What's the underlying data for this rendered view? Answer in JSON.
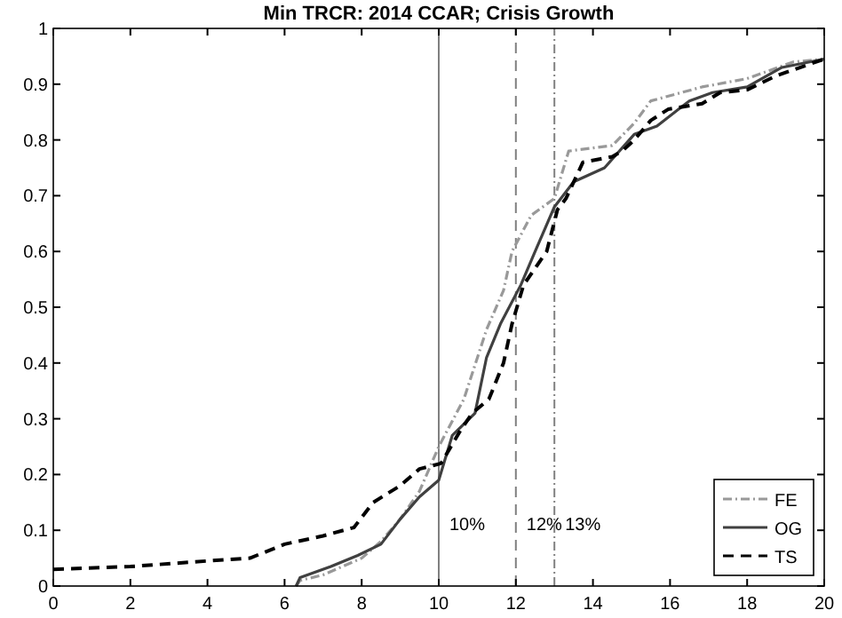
{
  "chart_data": {
    "type": "line",
    "title": "Min TRCR: 2014 CCAR; Crisis Growth",
    "xlim": [
      0,
      20
    ],
    "xticks": [
      0,
      2,
      4,
      6,
      8,
      10,
      12,
      14,
      16,
      18,
      20
    ],
    "ylim": [
      0,
      1
    ],
    "yticks": [
      0,
      0.1,
      0.2,
      0.3,
      0.4,
      0.5,
      0.6,
      0.7,
      0.8,
      0.9,
      1
    ],
    "grid": false,
    "legend": "bottom right",
    "series": [
      {
        "name": "FE",
        "color": "#999999",
        "line_style": "dotted",
        "x": [
          6.3,
          6.4,
          7,
          8,
          8.5,
          9,
          9.5,
          10,
          10.65,
          11.24,
          11.68,
          11.9,
          12.4,
          13,
          13.37,
          14.5,
          15.07,
          15.5,
          16.83,
          18,
          19.2,
          20
        ],
        "values": [
          0,
          0.01,
          0.02,
          0.05,
          0.08,
          0.12,
          0.17,
          0.25,
          0.335,
          0.46,
          0.53,
          0.6,
          0.665,
          0.695,
          0.78,
          0.79,
          0.83,
          0.87,
          0.895,
          0.91,
          0.94,
          0.945
        ]
      },
      {
        "name": "OG",
        "color": "#404040",
        "line_style": "solid",
        "x": [
          6.3,
          6.4,
          7.2,
          7.9,
          8.5,
          9,
          9.5,
          10,
          10.35,
          10.94,
          11.24,
          11.6,
          12.13,
          12.5,
          13,
          13.5,
          14.3,
          15.07,
          15.66,
          16.5,
          17.1,
          18,
          18.9,
          20
        ],
        "values": [
          0,
          0.015,
          0.035,
          0.055,
          0.075,
          0.12,
          0.16,
          0.19,
          0.27,
          0.31,
          0.41,
          0.47,
          0.54,
          0.6,
          0.68,
          0.725,
          0.75,
          0.81,
          0.825,
          0.87,
          0.885,
          0.895,
          0.93,
          0.945
        ]
      },
      {
        "name": "TS",
        "color": "#000000",
        "line_style": "dashed",
        "x": [
          0,
          2,
          4,
          5.1,
          6,
          7,
          7.8,
          8.3,
          9,
          9.5,
          10.06,
          10.57,
          10.87,
          11.3,
          11.68,
          11.9,
          12.2,
          12.8,
          13.08,
          13.3,
          13.74,
          14.5,
          14.76,
          15.07,
          15.5,
          15.95,
          16.83,
          17.3,
          18,
          18.75,
          20
        ],
        "values": [
          0.03,
          0.035,
          0.045,
          0.05,
          0.075,
          0.09,
          0.105,
          0.15,
          0.18,
          0.21,
          0.22,
          0.28,
          0.31,
          0.335,
          0.4,
          0.47,
          0.54,
          0.6,
          0.675,
          0.695,
          0.76,
          0.77,
          0.78,
          0.8,
          0.835,
          0.855,
          0.865,
          0.885,
          0.89,
          0.915,
          0.945
        ]
      }
    ],
    "ref_lines": [
      {
        "axis": "x",
        "value": 10,
        "label": "10%",
        "color": "#808080",
        "line_style": "solid"
      },
      {
        "axis": "x",
        "value": 12,
        "label": "12%",
        "color": "#808080",
        "line_style": "dashed"
      },
      {
        "axis": "x",
        "value": 13,
        "label": "13%",
        "color": "#808080",
        "line_style": "dotted"
      }
    ]
  }
}
